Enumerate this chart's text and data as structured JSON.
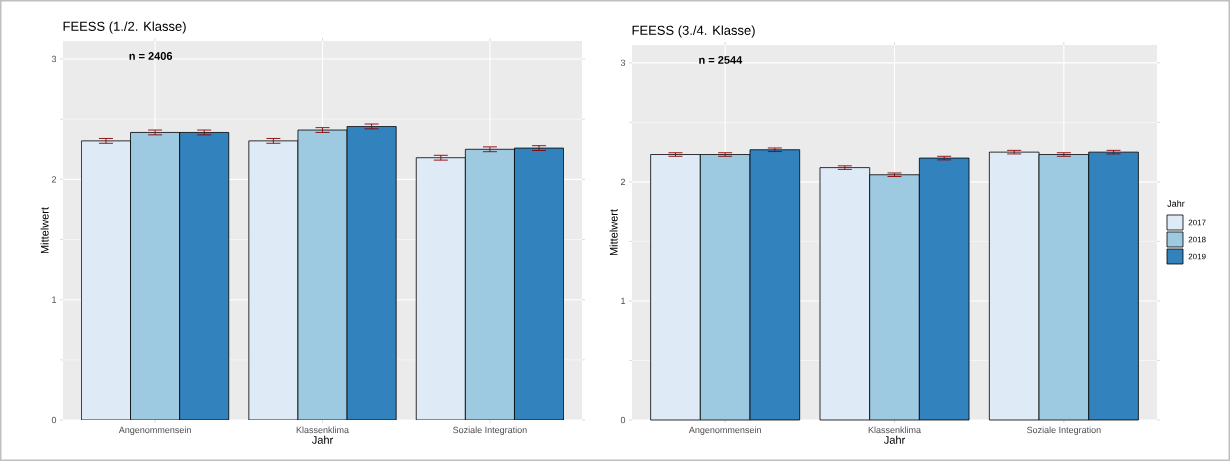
{
  "chart_data": [
    {
      "type": "bar",
      "title": "FEESS (1./2. Klasse)",
      "xlabel": "Jahr",
      "ylabel": "Mittelwert",
      "annotations": [
        "n = 2406"
      ],
      "categories": [
        "Angenommensein",
        "Klassenklima",
        "Soziale Integration"
      ],
      "series": [
        {
          "color": "#deebf7",
          "values": [
            2.32,
            2.32,
            2.18
          ],
          "errors": [
            0.02,
            0.02,
            0.02
          ]
        },
        {
          "color": "#9ecae1",
          "values": [
            2.39,
            2.41,
            2.25
          ],
          "errors": [
            0.02,
            0.02,
            0.02
          ]
        },
        {
          "color": "#3182bd",
          "values": [
            2.39,
            2.44,
            2.26
          ],
          "errors": [
            0.02,
            0.02,
            0.02
          ]
        }
      ],
      "ylim": [
        0,
        3.15
      ],
      "yticks": [
        0,
        1,
        2,
        3
      ],
      "grid": true,
      "legend": false
    },
    {
      "type": "bar",
      "title": "FEESS (3./4. Klasse)",
      "xlabel": "Jahr",
      "ylabel": "Mittelwert",
      "annotations": [
        "n = 2544"
      ],
      "legend_title": "Jahr",
      "categories": [
        "Angenommensein",
        "Klassenklima",
        "Soziale Integration"
      ],
      "series": [
        {
          "name": "2017",
          "color": "#deebf7",
          "values": [
            2.23,
            2.12,
            2.25
          ],
          "errors": [
            0.015,
            0.015,
            0.015
          ]
        },
        {
          "name": "2018",
          "color": "#9ecae1",
          "values": [
            2.23,
            2.06,
            2.23
          ],
          "errors": [
            0.015,
            0.015,
            0.015
          ]
        },
        {
          "name": "2019",
          "color": "#3182bd",
          "values": [
            2.27,
            2.2,
            2.25
          ],
          "errors": [
            0.015,
            0.015,
            0.015
          ]
        }
      ],
      "ylim": [
        0,
        3.15
      ],
      "yticks": [
        0,
        1,
        2,
        3
      ],
      "grid": true,
      "legend": "right"
    }
  ]
}
